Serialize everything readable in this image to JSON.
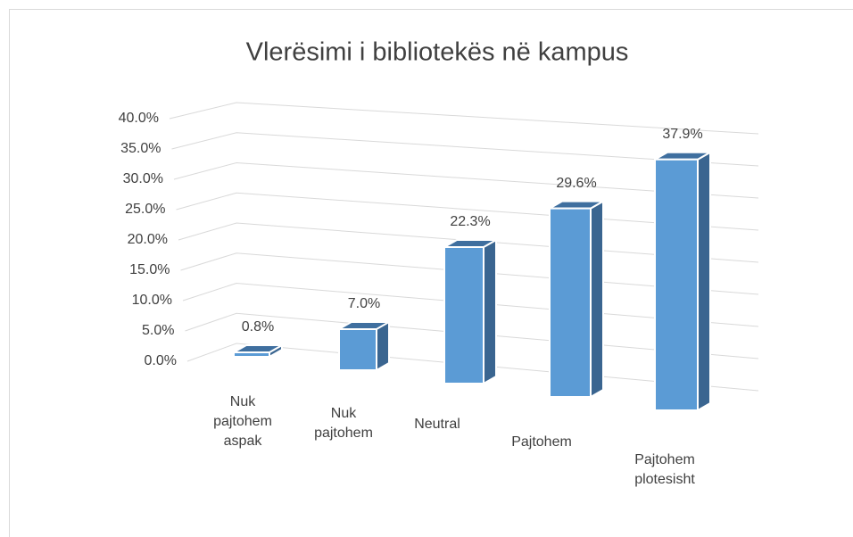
{
  "chart_data": {
    "type": "bar3d",
    "title": "Vlerësimi i bibliotekës në kampus",
    "categories": [
      "Nuk pajtohem aspak",
      "Nuk pajtohem",
      "Neutral",
      "Pajtohem",
      "Pajtohem plotesisht"
    ],
    "values": [
      0.8,
      7.0,
      22.3,
      29.6,
      37.9
    ],
    "value_labels": [
      "0.8%",
      "7.0%",
      "22.3%",
      "29.6%",
      "37.9%"
    ],
    "color": "#5b9bd5",
    "ylim": [
      0,
      40
    ],
    "yticks": [
      {
        "value": 0,
        "label": "0.0%"
      },
      {
        "value": 5,
        "label": "5.0%"
      },
      {
        "value": 10,
        "label": "10.0%"
      },
      {
        "value": 15,
        "label": "15.0%"
      },
      {
        "value": 20,
        "label": "20.0%"
      },
      {
        "value": 25,
        "label": "25.0%"
      },
      {
        "value": 30,
        "label": "30.0%"
      },
      {
        "value": 35,
        "label": "35.0%"
      },
      {
        "value": 40,
        "label": "40.0%"
      }
    ],
    "grid": true
  }
}
